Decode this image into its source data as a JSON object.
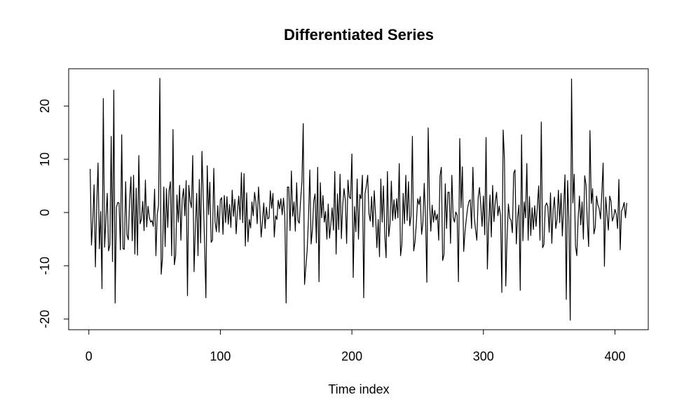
{
  "chart_data": {
    "type": "line",
    "title": "Differentiated Series",
    "xlabel": "Time index",
    "color": "#000000",
    "xlim": [
      -15.32,
      425.32
    ],
    "ylim": [
      -22.0,
      27.0
    ],
    "xticks": [
      0,
      100,
      200,
      300,
      400
    ],
    "yticks": [
      -20,
      -10,
      0,
      10,
      20
    ],
    "x": [
      1,
      2,
      3,
      4,
      5,
      6,
      7,
      8,
      9,
      10,
      11,
      12,
      13,
      14,
      15,
      16,
      17,
      18,
      19,
      20,
      21,
      22,
      23,
      24,
      25,
      26,
      27,
      28,
      29,
      30,
      31,
      32,
      33,
      34,
      35,
      36,
      37,
      38,
      39,
      40,
      41,
      42,
      43,
      44,
      45,
      46,
      47,
      48,
      49,
      50,
      51,
      52,
      53,
      54,
      55,
      56,
      57,
      58,
      59,
      60,
      61,
      62,
      63,
      64,
      65,
      66,
      67,
      68,
      69,
      70,
      71,
      72,
      73,
      74,
      75,
      76,
      77,
      78,
      79,
      80,
      81,
      82,
      83,
      84,
      85,
      86,
      87,
      88,
      89,
      90,
      91,
      92,
      93,
      94,
      95,
      96,
      97,
      98,
      99,
      100,
      101,
      102,
      103,
      104,
      105,
      106,
      107,
      108,
      109,
      110,
      111,
      112,
      113,
      114,
      115,
      116,
      117,
      118,
      119,
      120,
      121,
      122,
      123,
      124,
      125,
      126,
      127,
      128,
      129,
      130,
      131,
      132,
      133,
      134,
      135,
      136,
      137,
      138,
      139,
      140,
      141,
      142,
      143,
      144,
      145,
      146,
      147,
      148,
      149,
      150,
      151,
      152,
      153,
      154,
      155,
      156,
      157,
      158,
      159,
      160,
      161,
      162,
      163,
      164,
      165,
      166,
      167,
      168,
      169,
      170,
      171,
      172,
      173,
      174,
      175,
      176,
      177,
      178,
      179,
      180,
      181,
      182,
      183,
      184,
      185,
      186,
      187,
      188,
      189,
      190,
      191,
      192,
      193,
      194,
      195,
      196,
      197,
      198,
      199,
      200,
      201,
      202,
      203,
      204,
      205,
      206,
      207,
      208,
      209,
      210,
      211,
      212,
      213,
      214,
      215,
      216,
      217,
      218,
      219,
      220,
      221,
      222,
      223,
      224,
      225,
      226,
      227,
      228,
      229,
      230,
      231,
      232,
      233,
      234,
      235,
      236,
      237,
      238,
      239,
      240,
      241,
      242,
      243,
      244,
      245,
      246,
      247,
      248,
      249,
      250,
      251,
      252,
      253,
      254,
      255,
      256,
      257,
      258,
      259,
      260,
      261,
      262,
      263,
      264,
      265,
      266,
      267,
      268,
      269,
      270,
      271,
      272,
      273,
      274,
      275,
      276,
      277,
      278,
      279,
      280,
      281,
      282,
      283,
      284,
      285,
      286,
      287,
      288,
      289,
      290,
      291,
      292,
      293,
      294,
      295,
      296,
      297,
      298,
      299,
      300,
      301,
      302,
      303,
      304,
      305,
      306,
      307,
      308,
      309,
      310,
      311,
      312,
      313,
      314,
      315,
      316,
      317,
      318,
      319,
      320,
      321,
      322,
      323,
      324,
      325,
      326,
      327,
      328,
      329,
      330,
      331,
      332,
      333,
      334,
      335,
      336,
      337,
      338,
      339,
      340,
      341,
      342,
      343,
      344,
      345,
      346,
      347,
      348,
      349,
      350,
      351,
      352,
      353,
      354,
      355,
      356,
      357,
      358,
      359,
      360,
      361,
      362,
      363,
      364,
      365,
      366,
      367,
      368,
      369,
      370,
      371,
      372,
      373,
      374,
      375,
      376,
      377,
      378,
      379,
      380,
      381,
      382,
      383,
      384,
      385,
      386,
      387,
      388,
      389,
      390,
      391,
      392,
      393,
      394,
      395,
      396,
      397,
      398,
      399,
      400,
      401,
      402,
      403,
      404,
      405,
      406,
      407,
      408,
      409
    ],
    "values": [
      8.2,
      -6.1,
      -1.5,
      5.2,
      -10.2,
      1.3,
      9.3,
      -6.8,
      0.2,
      -14.3,
      21.4,
      -6.5,
      -1.2,
      3.6,
      -7.2,
      -6.1,
      14.3,
      -9.2,
      23.0,
      -17.0,
      1.0,
      1.9,
      1.8,
      -7.0,
      14.6,
      -6.8,
      -6.9,
      5.8,
      -4.2,
      -5.1,
      2.3,
      6.7,
      -5.3,
      7.0,
      -7.8,
      4.6,
      -8.0,
      10.7,
      -2.1,
      -1.2,
      2.1,
      -3.4,
      6.1,
      -2.7,
      1.2,
      -0.9,
      -1.8,
      -1.5,
      -2.6,
      4.4,
      -8.1,
      -0.3,
      1.3,
      25.2,
      -11.6,
      -8.5,
      4.8,
      -6.4,
      4.5,
      -2.8,
      4.0,
      5.8,
      -8.1,
      15.6,
      -9.8,
      -8.1,
      3.3,
      -1.8,
      5.1,
      -5.2,
      2.5,
      4.5,
      -0.6,
      6.0,
      -15.6,
      5.1,
      2.2,
      0.9,
      10.7,
      -11.1,
      -2.9,
      3.6,
      -8.1,
      6.2,
      -5.7,
      11.5,
      3.0,
      -5.8,
      -16.0,
      8.8,
      -0.4,
      5.7,
      -5.6,
      -5.2,
      8.3,
      -1.8,
      -3.6,
      1.3,
      -3.7,
      2.4,
      2.8,
      -4.1,
      3.2,
      -1.9,
      3.0,
      -2.2,
      1.5,
      -2.8,
      4.2,
      -0.7,
      2.5,
      -4.0,
      0.3,
      3.1,
      -1.3,
      7.5,
      -1.9,
      7.3,
      -6.3,
      3.7,
      -5.5,
      -1.3,
      -2.9,
      2.0,
      -0.6,
      3.8,
      1.9,
      -2.1,
      4.8,
      0.9,
      -4.6,
      -1.7,
      1.8,
      -3.0,
      1.0,
      -1.2,
      -1.0,
      4.1,
      0.8,
      3.6,
      -4.6,
      -0.6,
      -1.3,
      2.3,
      0.7,
      2.6,
      -0.4,
      2.7,
      -0.6,
      -17.0,
      4.8,
      4.8,
      -3.4,
      7.8,
      -0.7,
      2.0,
      -3.5,
      5.6,
      -1.5,
      -2.0,
      2.3,
      5.7,
      16.7,
      -13.5,
      -10.2,
      -7.1,
      -1.0,
      8.0,
      -5.9,
      -3.2,
      2.2,
      3.5,
      -5.7,
      8.5,
      -13.0,
      5.6,
      -1.0,
      3.2,
      -1.8,
      0.2,
      -5.0,
      1.6,
      -4.8,
      -2.1,
      0.9,
      -3.3,
      7.7,
      -7.8,
      3.5,
      -3.2,
      7.2,
      -4.9,
      1.3,
      4.5,
      2.4,
      -5.8,
      6.1,
      2.9,
      2.6,
      11.0,
      -12.2,
      1.1,
      -3.6,
      6.3,
      -5.0,
      3.4,
      2.6,
      7.0,
      -16.0,
      3.6,
      5.0,
      7.0,
      -0.2,
      -1.6,
      3.0,
      -2.7,
      4.1,
      -0.5,
      -6.6,
      -1.3,
      -8.3,
      6.3,
      -1.8,
      5.0,
      -4.3,
      -8.5,
      7.7,
      -4.5,
      -2.1,
      5.9,
      -1.5,
      2.4,
      -1.2,
      2.6,
      -1.0,
      9.2,
      -8.1,
      -6.0,
      3.6,
      -2.1,
      7.0,
      -1.5,
      5.8,
      -2.5,
      -0.6,
      14.3,
      -7.2,
      -5.5,
      -2.0,
      2.6,
      1.5,
      3.0,
      -4.1,
      -1.9,
      5.5,
      -1.0,
      -13.1,
      15.9,
      2.2,
      -3.5,
      1.4,
      -1.8,
      0.4,
      -1.4,
      -0.3,
      -5.2,
      6.9,
      8.5,
      -9.0,
      -7.9,
      5.4,
      -3.0,
      3.8,
      3.8,
      -5.8,
      7.0,
      -0.9,
      -1.8,
      0.1,
      -0.5,
      -13.0,
      13.9,
      0.9,
      8.6,
      -7.3,
      -3.6,
      -1.2,
      0.9,
      2.1,
      2.4,
      -3.0,
      8.5,
      -0.7,
      -3.2,
      -5.2,
      2.8,
      4.7,
      1.3,
      -2.6,
      3.1,
      -4.2,
      14.1,
      -10.6,
      -2.4,
      3.3,
      -4.6,
      5.1,
      -1.7,
      2.0,
      3.8,
      -0.6,
      1.2,
      -0.6,
      -15.0,
      15.5,
      10.0,
      -13.8,
      -4.5,
      1.6,
      -1.1,
      -1.4,
      -3.8,
      7.4,
      8.0,
      -5.9,
      -0.8,
      1.4,
      -14.6,
      14.6,
      -5.3,
      2.0,
      -1.0,
      9.2,
      -5.2,
      3.0,
      -4.3,
      0.9,
      -3.2,
      1.3,
      -2.6,
      1.1,
      5.0,
      -5.2,
      17.0,
      -6.6,
      -6.0,
      1.2,
      1.8,
      1.1,
      -3.7,
      3.7,
      -5.8,
      0.6,
      2.9,
      -3.0,
      -1.2,
      4.2,
      -1.9,
      3.6,
      -4.4,
      1.0,
      7.1,
      -16.3,
      6.0,
      -1.5,
      -20.2,
      25.1,
      1.8,
      7.2,
      -6.3,
      -8.1,
      -1.2,
      3.1,
      -2.3,
      2.0,
      -5.0,
      6.9,
      5.2,
      -1.8,
      -6.4,
      15.4,
      1.7,
      4.5,
      -4.0,
      -2.8,
      3.1,
      1.4,
      0.8,
      -1.2,
      3.5,
      9.3,
      -10.1,
      2.9,
      -0.4,
      -3.3,
      3.1,
      2.1,
      -1.6,
      -0.8,
      0.6,
      -0.3,
      -3.0,
      6.2,
      -7.0,
      0.3,
      0.9,
      1.9,
      -1.0,
      1.8
    ]
  }
}
